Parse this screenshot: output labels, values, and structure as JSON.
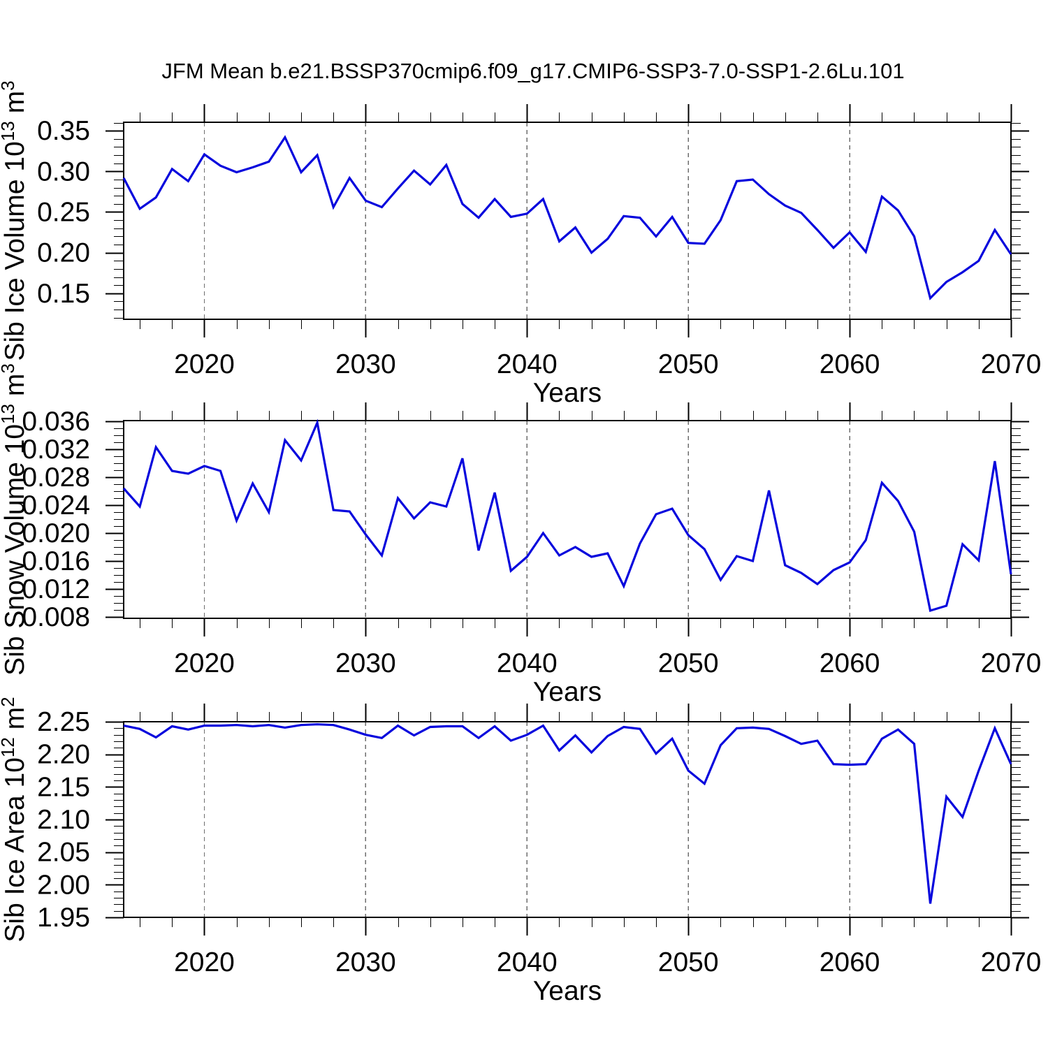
{
  "title": "JFM Mean b.e21.BSSP370cmip6.f09_g17.CMIP6-SSP3-7.0-SSP1-2.6Lu.101",
  "background": "#ffffff",
  "style": {
    "line_color": "#0707dd",
    "grid_color": "#6e6e6e",
    "axis_color": "#000000"
  },
  "x_axis": {
    "label": "Years",
    "range": [
      2015,
      2070
    ],
    "major_ticks": [
      2020,
      2030,
      2040,
      2050,
      2060,
      2070
    ],
    "tick_labels": [
      "2020",
      "2030",
      "2040",
      "2050",
      "2060",
      "2070"
    ],
    "minor_step_years": 2,
    "gridlines_at": [
      2020,
      2030,
      2040,
      2050,
      2060
    ]
  },
  "chart_data": [
    {
      "type": "line",
      "id": "sib-ice-volume",
      "ylabel": {
        "base": "Sib Ice Volume 10",
        "exp": "13",
        "unit": "m",
        "unit_exp": "3"
      },
      "xlabel": "Years",
      "ylim": [
        0.118,
        0.3605
      ],
      "yticks": [
        0.15,
        0.2,
        0.25,
        0.3,
        0.35
      ],
      "ytick_labels": [
        "0.15",
        "0.20",
        "0.25",
        "0.30",
        "0.35"
      ],
      "y_minor_start": 0.12,
      "y_minor_step": 0.01,
      "years": [
        2015,
        2016,
        2017,
        2018,
        2019,
        2020,
        2021,
        2022,
        2023,
        2024,
        2025,
        2026,
        2027,
        2028,
        2029,
        2030,
        2031,
        2032,
        2033,
        2034,
        2035,
        2036,
        2037,
        2038,
        2039,
        2040,
        2041,
        2042,
        2043,
        2044,
        2045,
        2046,
        2047,
        2048,
        2049,
        2050,
        2051,
        2052,
        2053,
        2054,
        2055,
        2056,
        2057,
        2058,
        2059,
        2060,
        2061,
        2062,
        2063,
        2064,
        2065,
        2066,
        2067,
        2068,
        2069,
        2070
      ],
      "values": [
        0.292,
        0.254,
        0.268,
        0.303,
        0.288,
        0.321,
        0.307,
        0.299,
        0.305,
        0.312,
        0.342,
        0.299,
        0.32,
        0.256,
        0.292,
        0.264,
        0.256,
        0.279,
        0.301,
        0.284,
        0.308,
        0.26,
        0.243,
        0.266,
        0.244,
        0.248,
        0.266,
        0.214,
        0.231,
        0.2,
        0.217,
        0.245,
        0.243,
        0.22,
        0.244,
        0.212,
        0.211,
        0.24,
        0.288,
        0.29,
        0.272,
        0.258,
        0.249,
        0.228,
        0.206,
        0.225,
        0.201,
        0.269,
        0.252,
        0.22,
        0.144,
        0.164,
        0.176,
        0.19,
        0.228,
        0.198
      ]
    },
    {
      "type": "line",
      "id": "sib-snow-volume",
      "ylabel": {
        "base": "Sib Snow Volume 10",
        "exp": "13",
        "unit": "m",
        "unit_exp": "3"
      },
      "xlabel": "Years",
      "ylim": [
        0.0078,
        0.0361
      ],
      "yticks": [
        0.008,
        0.012,
        0.016,
        0.02,
        0.024,
        0.028,
        0.032,
        0.036
      ],
      "ytick_labels": [
        "0.008",
        "0.012",
        "0.016",
        "0.020",
        "0.024",
        "0.028",
        "0.032",
        "0.036"
      ],
      "y_minor_start": 0.008,
      "y_minor_step": 0.001,
      "years": [
        2015,
        2016,
        2017,
        2018,
        2019,
        2020,
        2021,
        2022,
        2023,
        2024,
        2025,
        2026,
        2027,
        2028,
        2029,
        2030,
        2031,
        2032,
        2033,
        2034,
        2035,
        2036,
        2037,
        2038,
        2039,
        2040,
        2041,
        2042,
        2043,
        2044,
        2045,
        2046,
        2047,
        2048,
        2049,
        2050,
        2051,
        2052,
        2053,
        2054,
        2055,
        2056,
        2057,
        2058,
        2059,
        2060,
        2061,
        2062,
        2063,
        2064,
        2065,
        2066,
        2067,
        2068,
        2069,
        2070
      ],
      "values": [
        0.0264,
        0.0238,
        0.0323,
        0.0289,
        0.0285,
        0.0296,
        0.0289,
        0.0218,
        0.0271,
        0.023,
        0.0333,
        0.0304,
        0.0358,
        0.0233,
        0.0231,
        0.0198,
        0.0168,
        0.025,
        0.0221,
        0.0244,
        0.0238,
        0.0307,
        0.0175,
        0.0258,
        0.0146,
        0.0166,
        0.02,
        0.0168,
        0.018,
        0.0166,
        0.0171,
        0.0124,
        0.0185,
        0.0227,
        0.0235,
        0.0197,
        0.0177,
        0.0133,
        0.0167,
        0.016,
        0.0261,
        0.0154,
        0.0143,
        0.0127,
        0.0147,
        0.0158,
        0.019,
        0.0272,
        0.0246,
        0.0202,
        0.0089,
        0.0096,
        0.0184,
        0.0161,
        0.0303,
        0.0141
      ]
    },
    {
      "type": "line",
      "id": "sib-ice-area",
      "ylabel": {
        "base": "Sib Ice Area 10",
        "exp": "12",
        "unit": "m",
        "unit_exp": "2"
      },
      "xlabel": "Years",
      "ylim": [
        1.95,
        2.25
      ],
      "yticks": [
        1.95,
        2.0,
        2.05,
        2.1,
        2.15,
        2.2,
        2.25
      ],
      "ytick_labels": [
        "1.95",
        "2.00",
        "2.05",
        "2.10",
        "2.15",
        "2.20",
        "2.25"
      ],
      "y_minor_start": 1.95,
      "y_minor_step": 0.01,
      "years": [
        2015,
        2016,
        2017,
        2018,
        2019,
        2020,
        2021,
        2022,
        2023,
        2024,
        2025,
        2026,
        2027,
        2028,
        2029,
        2030,
        2031,
        2032,
        2033,
        2034,
        2035,
        2036,
        2037,
        2038,
        2039,
        2040,
        2041,
        2042,
        2043,
        2044,
        2045,
        2046,
        2047,
        2048,
        2049,
        2050,
        2051,
        2052,
        2053,
        2054,
        2055,
        2056,
        2057,
        2058,
        2059,
        2060,
        2061,
        2062,
        2063,
        2064,
        2065,
        2066,
        2067,
        2068,
        2069,
        2070
      ],
      "values": [
        2.244,
        2.239,
        2.226,
        2.243,
        2.238,
        2.244,
        2.244,
        2.245,
        2.243,
        2.245,
        2.241,
        2.245,
        2.246,
        2.245,
        2.238,
        2.23,
        2.225,
        2.244,
        2.229,
        2.242,
        2.243,
        2.243,
        2.225,
        2.243,
        2.221,
        2.23,
        2.244,
        2.206,
        2.229,
        2.203,
        2.228,
        2.242,
        2.239,
        2.201,
        2.224,
        2.175,
        2.155,
        2.214,
        2.24,
        2.241,
        2.239,
        2.228,
        2.216,
        2.221,
        2.185,
        2.184,
        2.185,
        2.224,
        2.238,
        2.216,
        1.971,
        2.135,
        2.104,
        2.175,
        2.24,
        2.185
      ]
    }
  ]
}
